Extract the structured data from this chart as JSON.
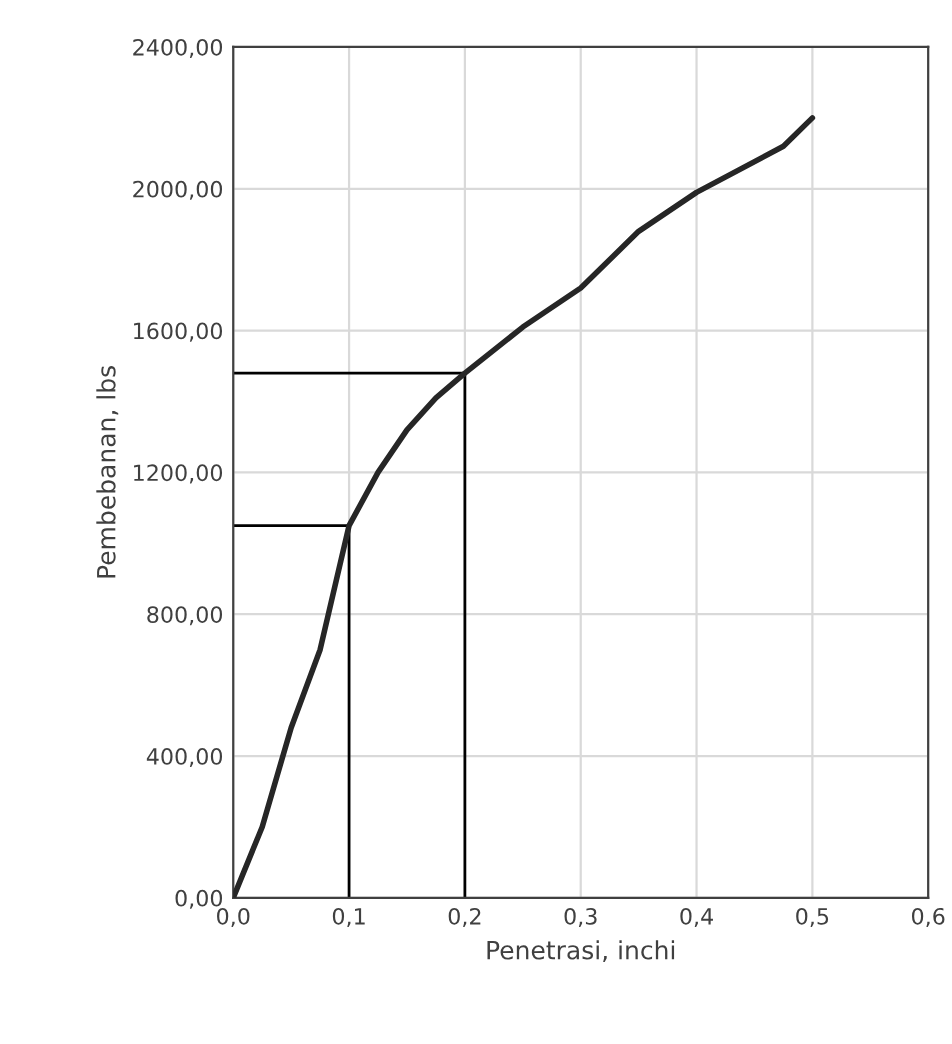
{
  "chart_data": {
    "type": "line",
    "xlabel": "Penetrasi, inchi",
    "ylabel": "Pembebanan, lbs",
    "series": [
      {
        "color": "#262626",
        "x": [
          0,
          0.025,
          0.05,
          0.075,
          0.1,
          0.125,
          0.15,
          0.175,
          0.2,
          0.25,
          0.3,
          0.35,
          0.4,
          0.475,
          0.5
        ],
        "values": [
          0,
          200,
          480,
          700,
          1050,
          1200,
          1320,
          1410,
          1480,
          1610,
          1720,
          1880,
          1990,
          2120,
          2200
        ]
      },
      {
        "color": "#000000",
        "x": [
          0,
          0.1,
          0.1
        ],
        "values": [
          1050,
          1050,
          0
        ]
      },
      {
        "color": "#000000",
        "x": [
          0,
          0.2,
          0.2
        ],
        "values": [
          1480,
          1480,
          0
        ]
      }
    ],
    "xlim": [
      0,
      0.6
    ],
    "ylim": [
      0,
      2400
    ],
    "xticks": [
      {
        "value": 0,
        "label": "0,0"
      },
      {
        "value": 0.1,
        "label": "0,1"
      },
      {
        "value": 0.2,
        "label": "0,2"
      },
      {
        "value": 0.3,
        "label": "0,3"
      },
      {
        "value": 0.4,
        "label": "0,4"
      },
      {
        "value": 0.5,
        "label": "0,5"
      },
      {
        "value": 0.6,
        "label": "0,6"
      }
    ],
    "yticks": [
      {
        "value": 0,
        "label": "0,00"
      },
      {
        "value": 400,
        "label": "400,00"
      },
      {
        "value": 800,
        "label": "800,00"
      },
      {
        "value": 1200,
        "label": "1200,00"
      },
      {
        "value": 1600,
        "label": "1600,00"
      },
      {
        "value": 2000,
        "label": "2000,00"
      },
      {
        "value": 2400,
        "label": "2400,00"
      }
    ],
    "grid": true,
    "marker": "none",
    "line_style": "solid"
  }
}
